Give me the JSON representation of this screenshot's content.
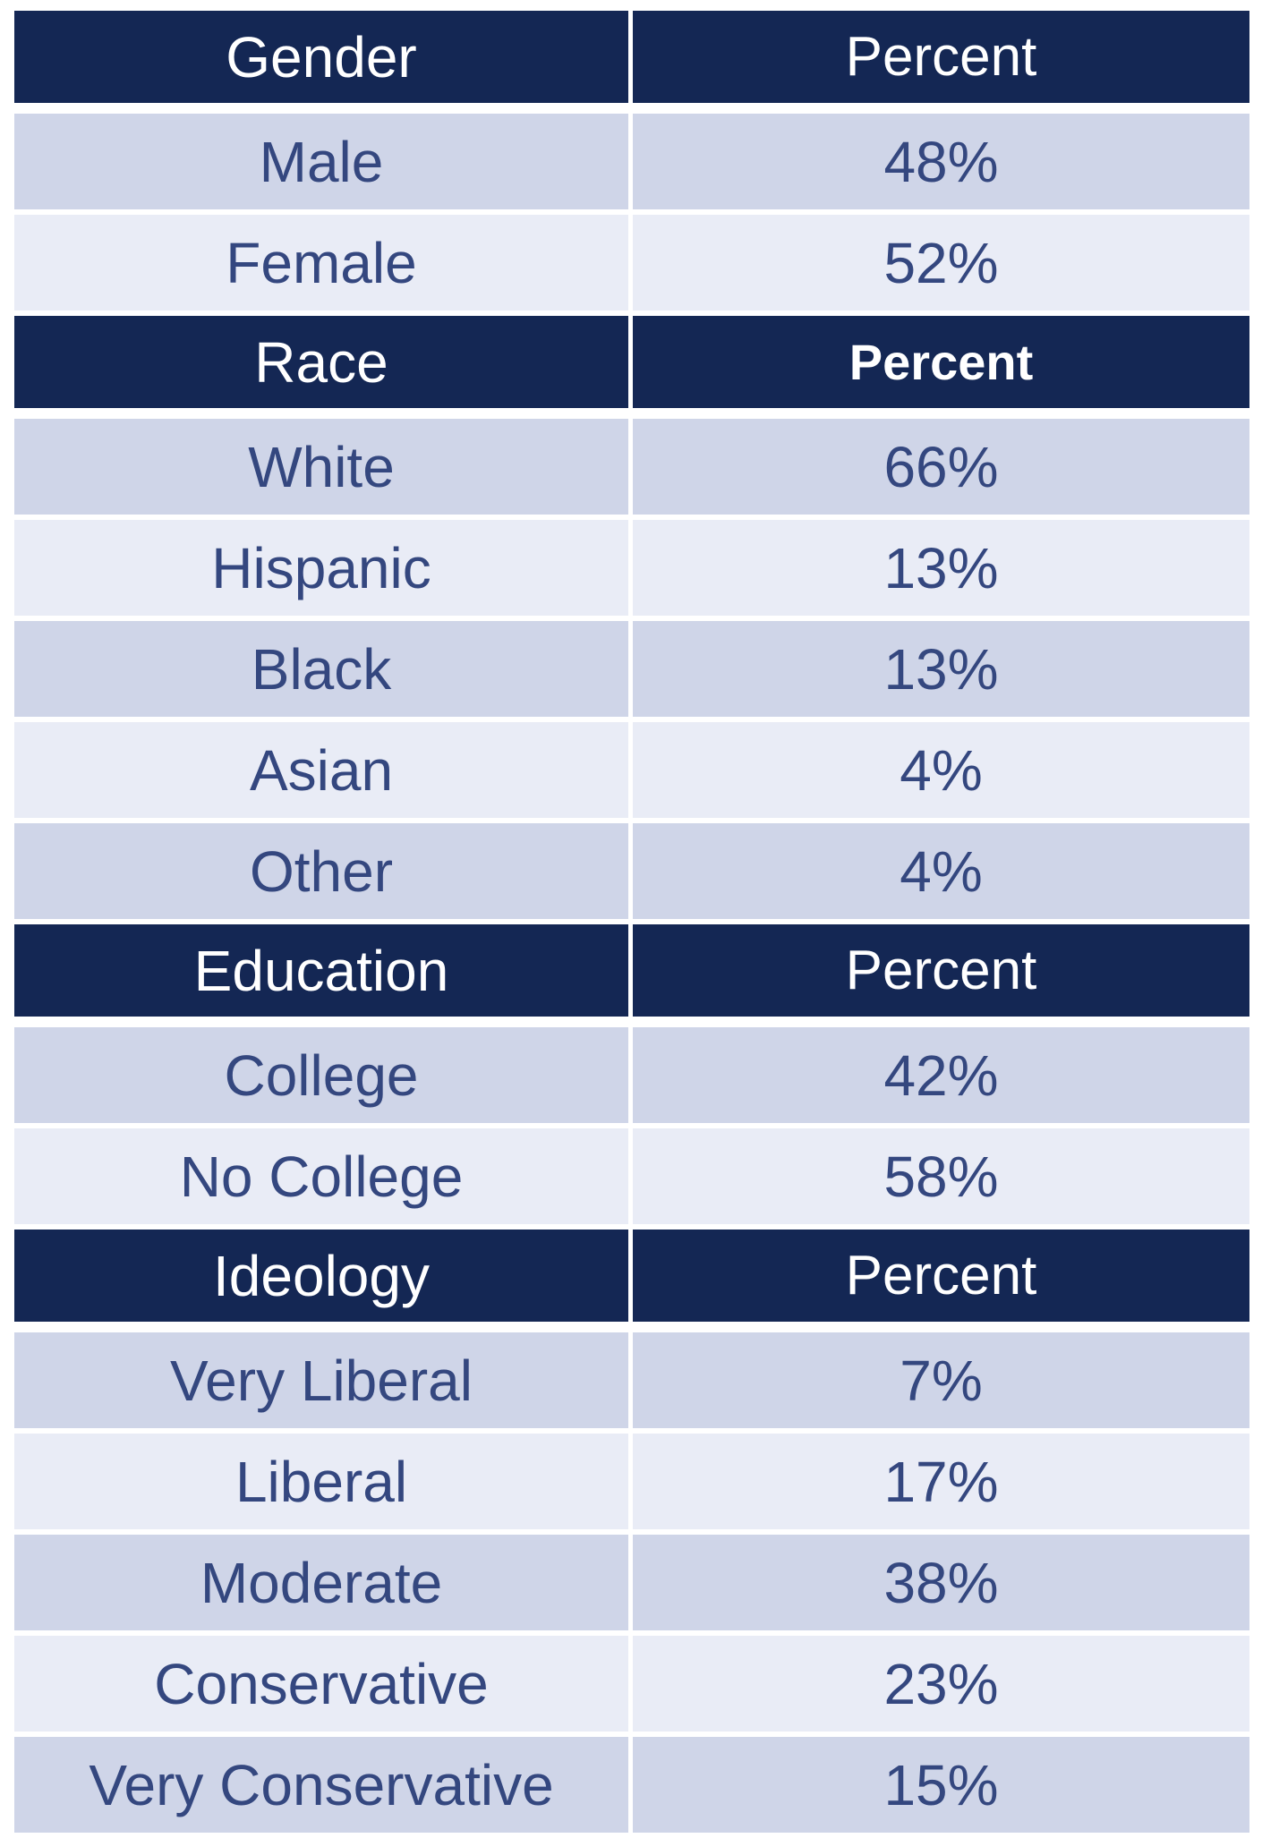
{
  "sections": [
    {
      "header": {
        "label": "Gender",
        "value_header": "Percent"
      },
      "rows": [
        {
          "label": "Male",
          "value": "48%"
        },
        {
          "label": "Female",
          "value": "52%"
        }
      ]
    },
    {
      "header": {
        "label": "Race",
        "value_header": "Percent"
      },
      "rows": [
        {
          "label": "White",
          "value": "66%"
        },
        {
          "label": "Hispanic",
          "value": "13%"
        },
        {
          "label": "Black",
          "value": "13%"
        },
        {
          "label": "Asian",
          "value": "4%"
        },
        {
          "label": "Other",
          "value": "4%"
        }
      ]
    },
    {
      "header": {
        "label": "Education",
        "value_header": "Percent"
      },
      "rows": [
        {
          "label": "College",
          "value": "42%"
        },
        {
          "label": "No College",
          "value": "58%"
        }
      ]
    },
    {
      "header": {
        "label": "Ideology",
        "value_header": "Percent"
      },
      "rows": [
        {
          "label": "Very Liberal",
          "value": "7%"
        },
        {
          "label": "Liberal",
          "value": "17%"
        },
        {
          "label": "Moderate",
          "value": "38%"
        },
        {
          "label": "Conservative",
          "value": "23%"
        },
        {
          "label": "Very Conservative",
          "value": "15%"
        }
      ]
    }
  ],
  "colors": {
    "header_bg": "#142754",
    "header_text": "#ffffff",
    "row_odd_bg": "#cfd5e8",
    "row_even_bg": "#e9ecf6",
    "row_text": "#34477f"
  }
}
